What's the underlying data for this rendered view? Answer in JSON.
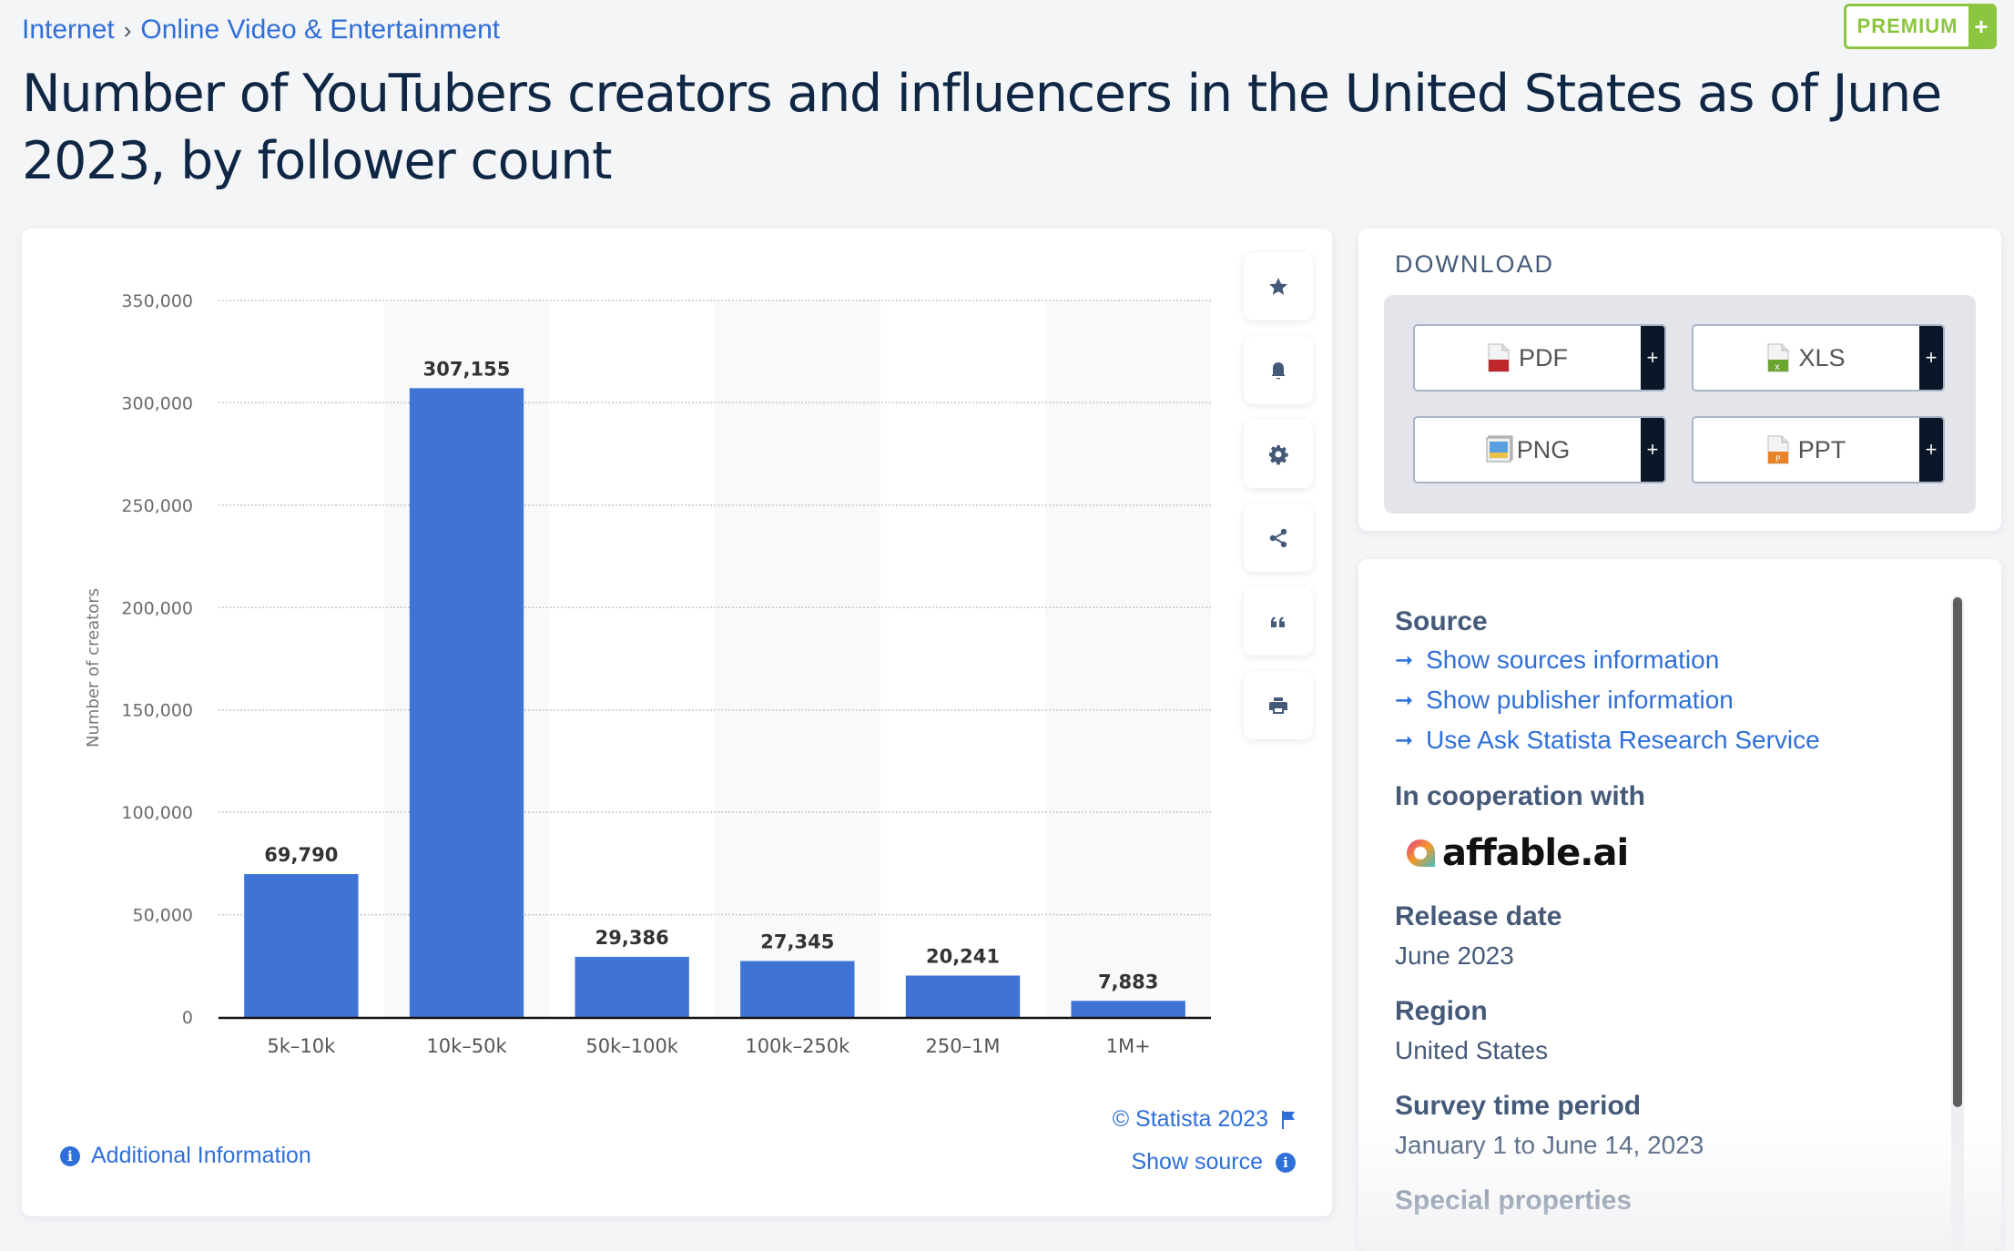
{
  "breadcrumb": {
    "items": [
      "Internet",
      "Online Video & Entertainment"
    ],
    "separator": "›"
  },
  "premium": {
    "label": "PREMIUM",
    "plus": "+"
  },
  "page_title": "Number of YouTubers creators and influencers in the United States as of June 2023, by follower count",
  "toolbar": {
    "items": [
      {
        "name": "favorite",
        "icon": "star-icon"
      },
      {
        "name": "notification",
        "icon": "bell-icon"
      },
      {
        "name": "settings",
        "icon": "gear-icon"
      },
      {
        "name": "share",
        "icon": "share-icon"
      },
      {
        "name": "cite",
        "icon": "quote-icon"
      },
      {
        "name": "print",
        "icon": "printer-icon"
      }
    ]
  },
  "chart_footer": {
    "additional_info": "Additional Information",
    "copyright": "© Statista 2023",
    "show_source": "Show source"
  },
  "download": {
    "title": "DOWNLOAD",
    "buttons": [
      {
        "label": "PDF",
        "icon": "pdf-file-icon",
        "color": "#c0272d"
      },
      {
        "label": "XLS",
        "icon": "xls-file-icon",
        "color": "#6aa630"
      },
      {
        "label": "PNG",
        "icon": "png-image-icon",
        "color": "#4a90d9"
      },
      {
        "label": "PPT",
        "icon": "ppt-file-icon",
        "color": "#e8832a"
      }
    ],
    "plus": "+"
  },
  "info": {
    "source_heading": "Source",
    "links": [
      "Show sources information",
      "Show publisher information",
      "Use Ask Statista Research Service"
    ],
    "cooperation_heading": "In cooperation with",
    "partner_logo": "affable.ai",
    "release_heading": "Release date",
    "release_value": "June 2023",
    "region_heading": "Region",
    "region_value": "United States",
    "survey_heading": "Survey time period",
    "survey_value": "January 1 to June 14, 2023",
    "special_heading": "Special properties"
  },
  "colors": {
    "bar": "#3f73d6",
    "link": "#2f6fd8",
    "premium": "#8cc63f",
    "heading": "#455a79"
  },
  "chart_data": {
    "type": "bar",
    "title": "Number of YouTubers creators and influencers in the United States as of June 2023, by follower count",
    "categories": [
      "5k–10k",
      "10k–50k",
      "50k–100k",
      "100k–250k",
      "250–1M",
      "1M+"
    ],
    "values": [
      69790,
      307155,
      29386,
      27345,
      20241,
      7883
    ],
    "data_labels": [
      "69,790",
      "307,155",
      "29,386",
      "27,345",
      "20,241",
      "7,883"
    ],
    "xlabel": "",
    "ylabel": "Number of creators",
    "ylim": [
      0,
      350000
    ],
    "yticks": [
      0,
      50000,
      100000,
      150000,
      200000,
      250000,
      300000,
      350000
    ],
    "ytick_labels": [
      "0",
      "50,000",
      "100,000",
      "150,000",
      "200,000",
      "250,000",
      "300,000",
      "350,000"
    ],
    "grid": true,
    "legend": "none"
  }
}
